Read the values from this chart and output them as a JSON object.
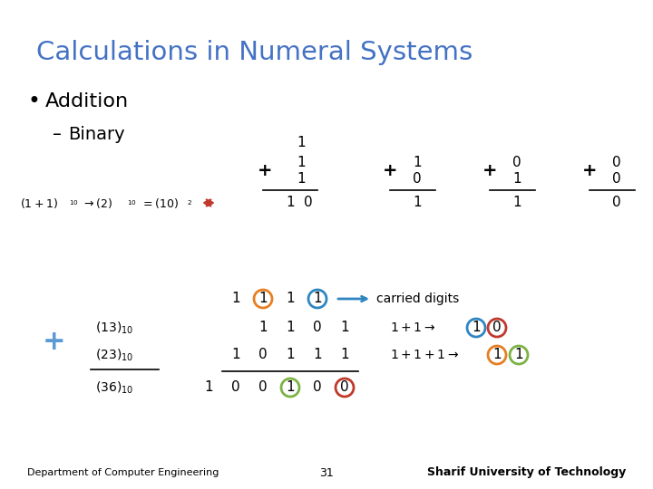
{
  "title": "Calculations in Numeral Systems",
  "title_color": "#4472C4",
  "bg_color": "#FFFFFF",
  "bullet1": "Addition",
  "bullet2": "Binary",
  "footer_left": "Department of Computer Engineering",
  "footer_center": "31",
  "footer_right": "Sharif University of Technology",
  "plus_color": "#5B9BD5",
  "arrow_color": "#C0392B",
  "orange_color": "#E67E22",
  "blue_color": "#2E86C1",
  "green_color": "#7CB342",
  "red_color": "#C0392B"
}
